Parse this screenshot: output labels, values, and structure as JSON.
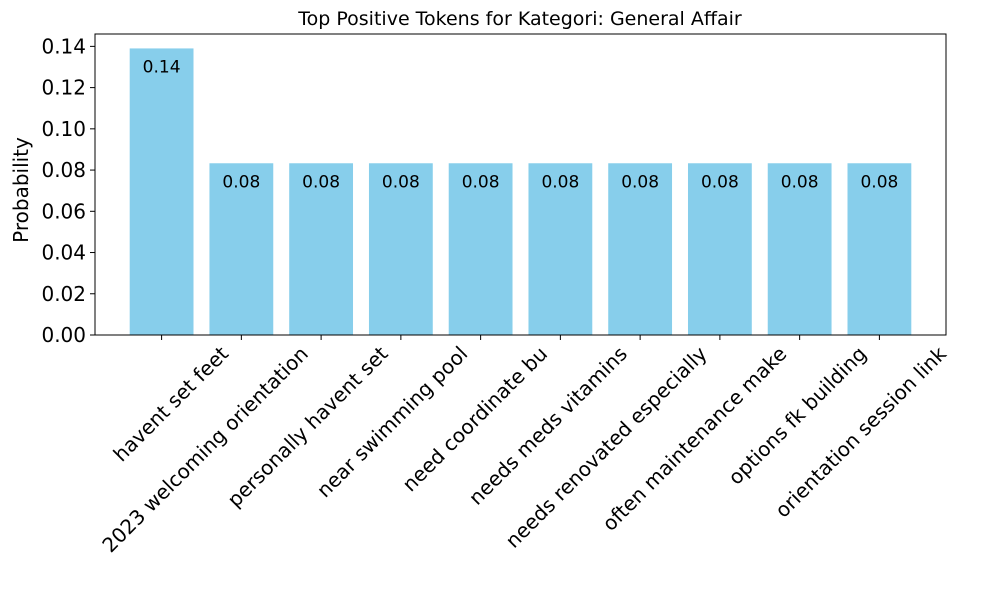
{
  "chart_data": {
    "type": "bar",
    "title": "Top Positive Tokens for Kategori: General Affair",
    "xlabel": "",
    "ylabel": "Probability",
    "ylim": [
      0,
      0.146
    ],
    "yticks": [
      "0.00",
      "0.02",
      "0.04",
      "0.06",
      "0.08",
      "0.10",
      "0.12",
      "0.14"
    ],
    "categories": [
      "havent set feet",
      "2023 welcoming orientation",
      "personally havent set",
      "near swimming pool",
      "need coordinate bu",
      "needs meds vitamins",
      "needs renovated especially",
      "often maintenance make",
      "options fk building",
      "orientation session link"
    ],
    "values": [
      0.139,
      0.0833,
      0.0833,
      0.0833,
      0.0833,
      0.0833,
      0.0833,
      0.0833,
      0.0833,
      0.0833
    ],
    "data_labels": [
      "0.14",
      "0.08",
      "0.08",
      "0.08",
      "0.08",
      "0.08",
      "0.08",
      "0.08",
      "0.08",
      "0.08"
    ],
    "bar_color": "#87ceeb",
    "grid": false,
    "legend": "none"
  }
}
